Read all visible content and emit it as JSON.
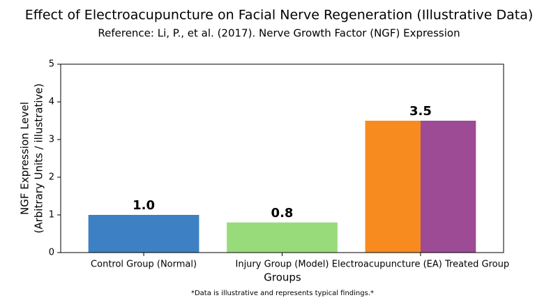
{
  "chart_data": {
    "type": "bar",
    "title": "Effect of Electroacupuncture on Facial Nerve Regeneration (Illustrative Data)",
    "subtitle": "Reference: Li, P., et al. (2017). Nerve Growth Factor (NGF) Expression",
    "xlabel": "Groups",
    "ylabel": [
      "NGF Expression Level",
      "(Arbitrary Units / illustrative)"
    ],
    "note": "*Data is illustrative and represents typical findings.*",
    "categories": [
      "Control Group (Normal)",
      "Injury Group (Model)",
      "Electroacupuncture (EA) Treated Group"
    ],
    "values": [
      1,
      0.8,
      3.5
    ],
    "value_labels": [
      "1.0",
      "0.8",
      "3.5"
    ],
    "colors": [
      "#3d80c3",
      "#98db7b",
      [
        "#f78b1f",
        "#9d4b94"
      ]
    ],
    "ylim": [
      0,
      5
    ],
    "yticks": [
      0,
      1,
      2,
      3,
      4,
      5
    ],
    "grid": false
  }
}
